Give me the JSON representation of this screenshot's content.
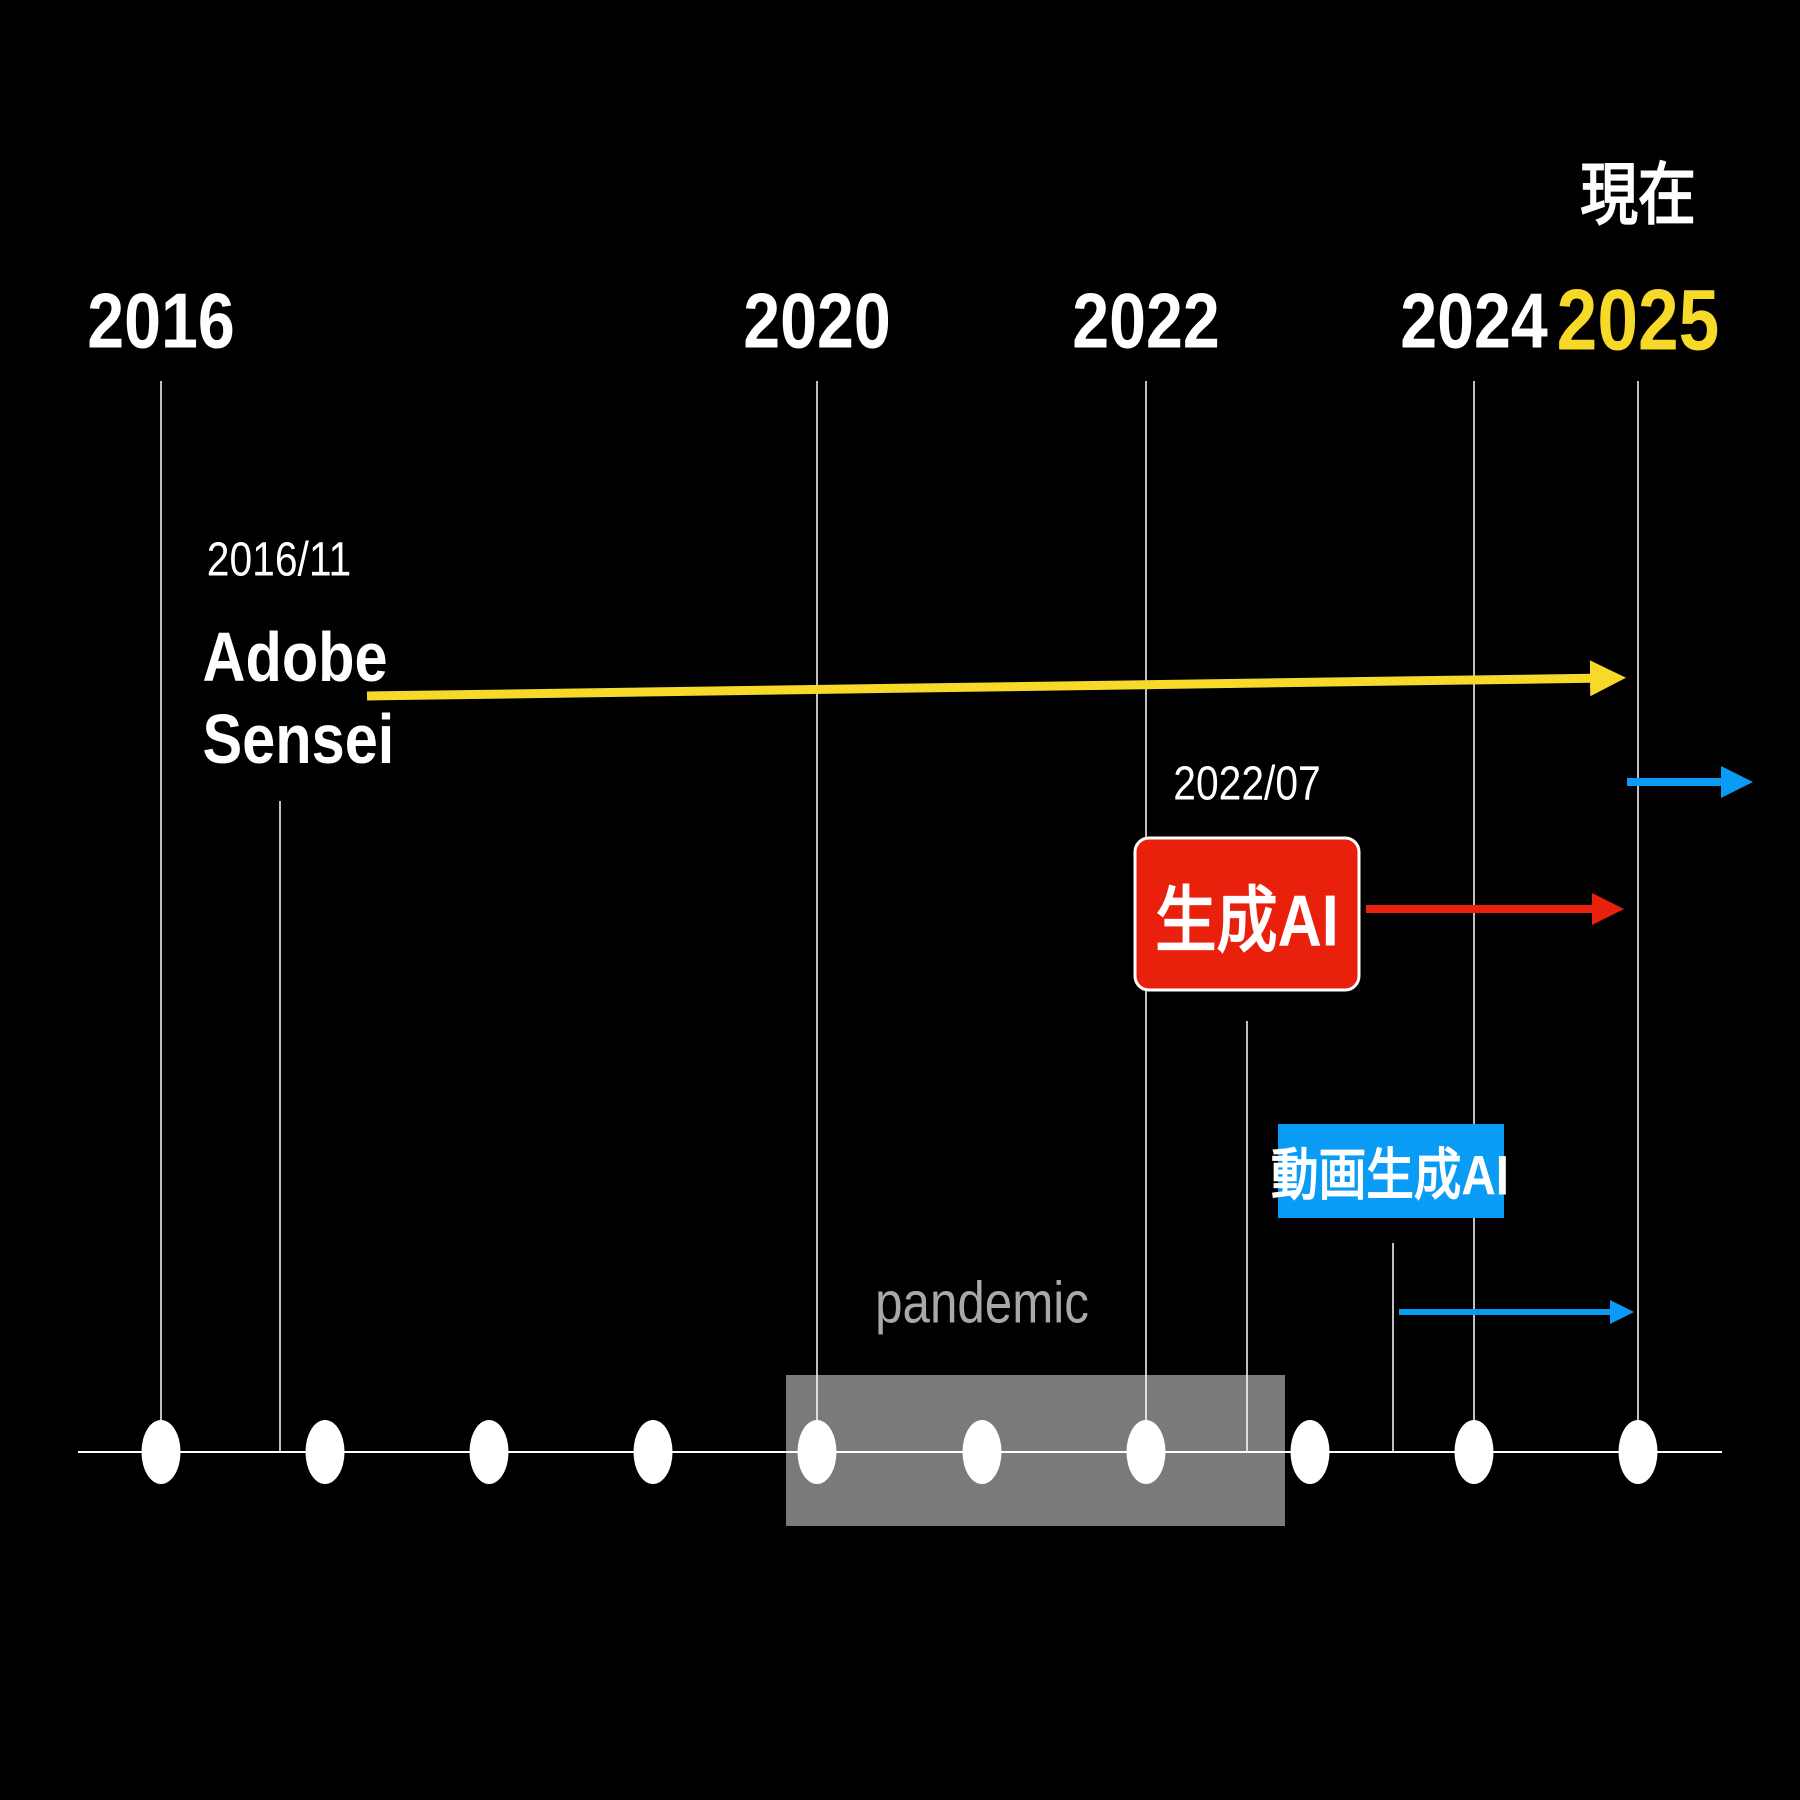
{
  "timeline": {
    "now_label": "現在",
    "years": [
      "2016",
      "2020",
      "2022",
      "2024",
      "2025"
    ],
    "events": [
      {
        "date": "2016/11",
        "label": "Adobe Sensei"
      },
      {
        "date": "2022/07",
        "label": "生成AI"
      },
      {
        "label": "動画生成AI"
      }
    ],
    "period": {
      "label": "pandemic"
    }
  }
}
